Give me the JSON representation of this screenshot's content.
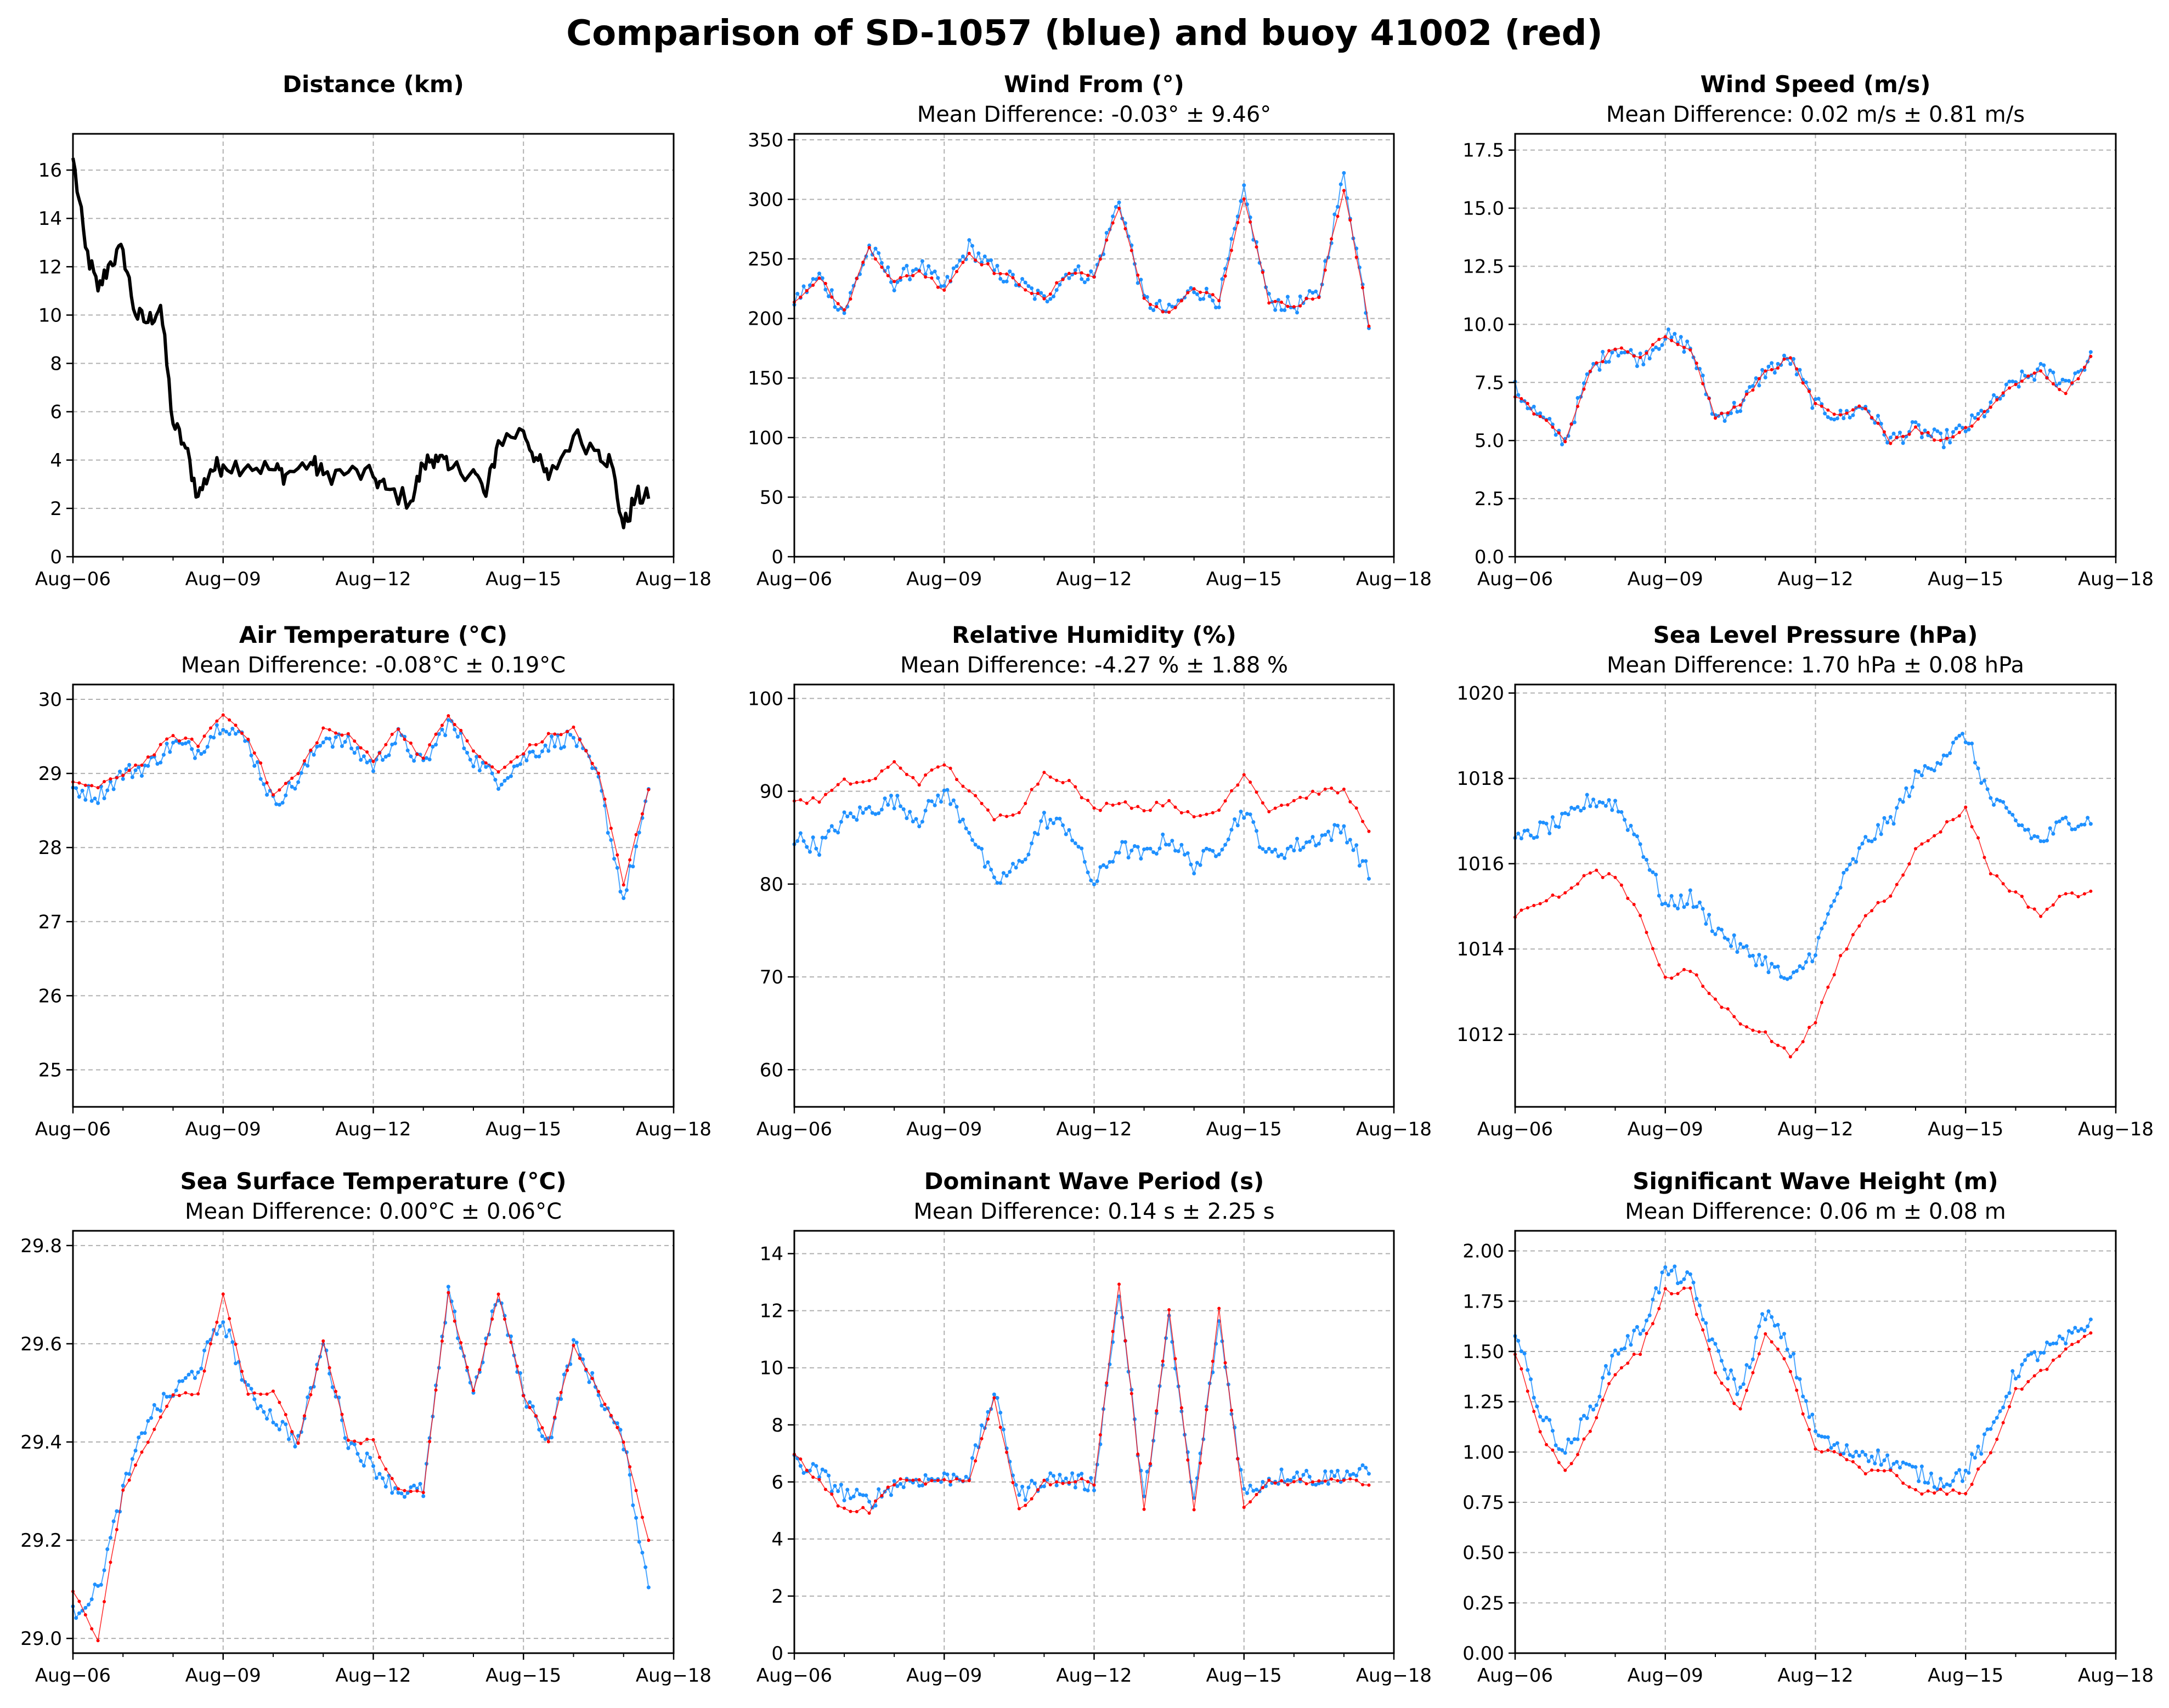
{
  "title": "Comparison of SD-1057 (blue) and buoy 41002 (red)",
  "colors": {
    "saildrone": "#1e90ff",
    "buoy": "#ff0000",
    "distance": "#000000",
    "grid": "#b0b0b0"
  },
  "x_ticks": [
    "Aug−06",
    "Aug−09",
    "Aug−12",
    "Aug−15",
    "Aug−18"
  ],
  "chart_data": [
    {
      "type": "line",
      "title": "Distance (km)",
      "subtitle": "",
      "ylim": [
        0,
        17.5
      ],
      "yticks": [
        "0",
        "2",
        "4",
        "6",
        "8",
        "10",
        "12",
        "14",
        "16"
      ],
      "ytick_values": [
        0,
        2,
        4,
        6,
        8,
        10,
        12,
        14,
        16
      ],
      "x": [
        "08-06",
        "08-06 06:00",
        "08-06 12:00",
        "08-06 18:00",
        "08-07",
        "08-07 06:00",
        "08-07 12:00",
        "08-07 18:00",
        "08-08",
        "08-08 06:00",
        "08-08 12:00",
        "08-08 18:00",
        "08-09",
        "08-09 12:00",
        "08-10",
        "08-10 06:00",
        "08-10 18:00",
        "08-11",
        "08-11 12:00",
        "08-12",
        "08-12 06:00",
        "08-12 18:00",
        "08-13",
        "08-13 06:00",
        "08-13 12:00",
        "08-14",
        "08-14 06:00",
        "08-14 12:00",
        "08-15",
        "08-15 06:00",
        "08-15 12:00",
        "08-16",
        "08-16 12:00",
        "08-16 18:00",
        "08-17",
        "08-17 06:00",
        "08-17 12:00"
      ],
      "series": [
        {
          "values": [
            16.5,
            12.8,
            11.0,
            12.2,
            12.7,
            10.0,
            9.7,
            10.4,
            5.5,
            4.5,
            2.5,
            3.6,
            3.8,
            3.8,
            3.6,
            3.4,
            3.9,
            3.4,
            3.5,
            3.3,
            2.8,
            2.3,
            3.8,
            4.2,
            3.6,
            3.6,
            2.5,
            4.8,
            5.2,
            4.1,
            3.2,
            5.0,
            4.4,
            3.9,
            1.2,
            2.5,
            2.4
          ]
        }
      ]
    },
    {
      "type": "scatter",
      "title": "Wind From (°)",
      "subtitle": "Mean Difference: -0.03° ± 9.46°",
      "ylim": [
        0,
        355
      ],
      "yticks": [
        "0",
        "50",
        "100",
        "150",
        "200",
        "250",
        "300",
        "350"
      ],
      "ytick_values": [
        0,
        50,
        100,
        150,
        200,
        250,
        300,
        350
      ],
      "x": [
        "08-06",
        "08-06 12:00",
        "08-07",
        "08-07 12:00",
        "08-08",
        "08-08 12:00",
        "08-09",
        "08-09 12:00",
        "08-10",
        "08-10 12:00",
        "08-11",
        "08-11 12:00",
        "08-12",
        "08-12 12:00",
        "08-13",
        "08-13 12:00",
        "08-14",
        "08-14 12:00",
        "08-15",
        "08-15 12:00",
        "08-16",
        "08-16 12:00",
        "08-17",
        "08-17 12:00"
      ],
      "series": [
        {
          "name": "SD-1057",
          "values": [
            215,
            235,
            205,
            260,
            230,
            245,
            225,
            260,
            240,
            230,
            215,
            240,
            235,
            300,
            215,
            205,
            225,
            215,
            305,
            215,
            210,
            220,
            320,
            195
          ]
        },
        {
          "name": "41002",
          "values": [
            215,
            235,
            205,
            260,
            230,
            240,
            225,
            255,
            240,
            230,
            215,
            240,
            235,
            295,
            215,
            205,
            225,
            215,
            300,
            215,
            210,
            220,
            310,
            195
          ]
        }
      ]
    },
    {
      "type": "scatter",
      "title": "Wind Speed (m/s)",
      "subtitle": "Mean Difference: 0.02 m/s ± 0.81 m/s",
      "ylim": [
        0,
        18.2
      ],
      "yticks": [
        "0.0",
        "2.5",
        "5.0",
        "7.5",
        "10.0",
        "12.5",
        "15.0",
        "17.5"
      ],
      "ytick_values": [
        0,
        2.5,
        5,
        7.5,
        10,
        12.5,
        15,
        17.5
      ],
      "x": [
        "08-06",
        "08-06 12:00",
        "08-07",
        "08-07 12:00",
        "08-08",
        "08-08 12:00",
        "08-09",
        "08-09 12:00",
        "08-10",
        "08-10 12:00",
        "08-11",
        "08-11 12:00",
        "08-12",
        "08-12 12:00",
        "08-13",
        "08-13 12:00",
        "08-14",
        "08-14 12:00",
        "08-15",
        "08-15 12:00",
        "08-16",
        "08-16 12:00",
        "08-17",
        "08-17 12:00"
      ],
      "series": [
        {
          "name": "SD-1057",
          "values": [
            7.2,
            6.0,
            5.0,
            8.0,
            9.0,
            8.5,
            9.5,
            9.0,
            6.0,
            6.5,
            8.0,
            8.5,
            6.5,
            6.0,
            6.5,
            5.0,
            5.5,
            5.0,
            5.5,
            6.5,
            7.5,
            8.0,
            7.5,
            8.5
          ]
        },
        {
          "name": "41002",
          "values": [
            7.0,
            6.0,
            5.0,
            8.0,
            9.0,
            8.5,
            9.5,
            9.0,
            6.0,
            6.5,
            8.0,
            8.5,
            6.5,
            6.0,
            6.5,
            5.0,
            5.5,
            5.0,
            5.5,
            6.5,
            7.5,
            8.0,
            7.0,
            8.5
          ]
        }
      ]
    },
    {
      "type": "scatter",
      "title": "Air Temperature (°C)",
      "subtitle": "Mean Difference: -0.08°C ± 0.19°C",
      "ylim": [
        24.5,
        30.2
      ],
      "yticks": [
        "25",
        "26",
        "27",
        "28",
        "29",
        "30"
      ],
      "ytick_values": [
        25,
        26,
        27,
        28,
        29,
        30
      ],
      "x": [
        "08-06",
        "08-06 12:00",
        "08-07",
        "08-07 12:00",
        "08-08",
        "08-08 12:00",
        "08-09",
        "08-09 12:00",
        "08-10",
        "08-10 12:00",
        "08-11",
        "08-11 12:00",
        "08-12",
        "08-12 12:00",
        "08-13",
        "08-13 12:00",
        "08-14",
        "08-14 12:00",
        "08-15",
        "08-15 12:00",
        "08-16",
        "08-16 12:00",
        "08-17",
        "08-17 12:00"
      ],
      "series": [
        {
          "name": "SD-1057",
          "values": [
            28.8,
            28.7,
            29.0,
            29.1,
            29.4,
            29.3,
            29.7,
            29.4,
            28.6,
            28.9,
            29.5,
            29.4,
            29.1,
            29.5,
            29.1,
            29.7,
            29.2,
            28.9,
            29.2,
            29.4,
            29.5,
            28.9,
            27.3,
            28.7
          ]
        },
        {
          "name": "41002",
          "values": [
            28.9,
            28.8,
            29.0,
            29.2,
            29.5,
            29.4,
            29.8,
            29.5,
            28.7,
            29.0,
            29.6,
            29.5,
            29.2,
            29.6,
            29.2,
            29.8,
            29.3,
            29.0,
            29.3,
            29.5,
            29.6,
            29.0,
            27.5,
            28.8
          ]
        }
      ]
    },
    {
      "type": "scatter",
      "title": "Relative Humidity (%)",
      "subtitle": "Mean Difference: -4.27 % ± 1.88 %",
      "ylim": [
        56,
        101.5
      ],
      "yticks": [
        "60",
        "70",
        "80",
        "90",
        "100"
      ],
      "ytick_values": [
        60,
        70,
        80,
        90,
        100
      ],
      "x": [
        "08-06",
        "08-06 12:00",
        "08-07",
        "08-07 12:00",
        "08-08",
        "08-08 12:00",
        "08-09",
        "08-09 12:00",
        "08-10",
        "08-10 12:00",
        "08-11",
        "08-11 12:00",
        "08-12",
        "08-12 12:00",
        "08-13",
        "08-13 12:00",
        "08-14",
        "08-14 12:00",
        "08-15",
        "08-15 12:00",
        "08-16",
        "08-16 12:00",
        "08-17",
        "08-17 12:00"
      ],
      "series": [
        {
          "name": "SD-1057",
          "values": [
            85,
            84,
            87,
            88,
            89,
            87,
            90,
            86,
            80,
            82,
            87,
            86,
            80,
            84,
            83,
            85,
            82,
            84,
            88,
            83,
            84,
            85,
            86,
            81
          ]
        },
        {
          "name": "41002",
          "values": [
            89,
            89,
            91,
            91,
            93,
            91,
            93,
            90,
            87,
            88,
            92,
            91,
            88,
            89,
            88,
            89,
            87,
            88,
            92,
            88,
            89,
            90,
            90,
            86
          ]
        }
      ]
    },
    {
      "type": "scatter",
      "title": "Sea Level Pressure (hPa)",
      "subtitle": "Mean Difference: 1.70 hPa ± 0.08 hPa",
      "ylim": [
        1010.3,
        1020.2
      ],
      "yticks": [
        "1012",
        "1014",
        "1016",
        "1018",
        "1020"
      ],
      "ytick_values": [
        1012,
        1014,
        1016,
        1018,
        1020
      ],
      "x": [
        "08-06",
        "08-06 12:00",
        "08-07",
        "08-07 12:00",
        "08-08",
        "08-08 12:00",
        "08-09",
        "08-09 12:00",
        "08-10",
        "08-10 12:00",
        "08-11",
        "08-11 12:00",
        "08-12",
        "08-12 12:00",
        "08-13",
        "08-13 12:00",
        "08-14",
        "08-14 12:00",
        "08-15",
        "08-15 12:00",
        "08-16",
        "08-16 12:00",
        "08-17",
        "08-17 12:00"
      ],
      "series": [
        {
          "name": "SD-1057",
          "values": [
            1016.5,
            1016.8,
            1017.0,
            1017.5,
            1017.4,
            1016.5,
            1015.0,
            1015.2,
            1014.5,
            1014.0,
            1013.7,
            1013.2,
            1014.0,
            1015.5,
            1016.5,
            1017.0,
            1018.0,
            1018.5,
            1019.0,
            1017.5,
            1017.0,
            1016.5,
            1017.0,
            1017.0
          ]
        },
        {
          "name": "41002",
          "values": [
            1014.8,
            1015.1,
            1015.3,
            1015.8,
            1015.7,
            1014.8,
            1013.3,
            1013.5,
            1012.8,
            1012.3,
            1012.0,
            1011.5,
            1012.3,
            1013.8,
            1014.8,
            1015.3,
            1016.3,
            1016.8,
            1017.3,
            1015.8,
            1015.3,
            1014.8,
            1015.3,
            1015.3
          ]
        }
      ]
    },
    {
      "type": "scatter",
      "title": "Sea Surface Temperature (°C)",
      "subtitle": "Mean Difference: 0.00°C ± 0.06°C",
      "ylim": [
        28.97,
        29.83
      ],
      "yticks": [
        "29.0",
        "29.2",
        "29.4",
        "29.6",
        "29.8"
      ],
      "ytick_values": [
        29,
        29.2,
        29.4,
        29.6,
        29.8
      ],
      "x": [
        "08-06",
        "08-06 12:00",
        "08-07",
        "08-07 12:00",
        "08-08",
        "08-08 12:00",
        "08-09",
        "08-09 12:00",
        "08-10",
        "08-10 12:00",
        "08-11",
        "08-11 12:00",
        "08-12",
        "08-12 12:00",
        "08-13",
        "08-13 12:00",
        "08-14",
        "08-14 12:00",
        "08-15",
        "08-15 12:00",
        "08-16",
        "08-16 12:00",
        "08-17",
        "08-17 12:00"
      ],
      "series": [
        {
          "name": "SD-1057",
          "values": [
            29.05,
            29.1,
            29.3,
            29.45,
            29.5,
            29.55,
            29.65,
            29.5,
            29.45,
            29.4,
            29.6,
            29.4,
            29.35,
            29.3,
            29.3,
            29.7,
            29.5,
            29.7,
            29.5,
            29.4,
            29.6,
            29.5,
            29.4,
            29.1
          ]
        },
        {
          "name": "41002",
          "values": [
            29.1,
            29.0,
            29.3,
            29.4,
            29.5,
            29.5,
            29.7,
            29.5,
            29.5,
            29.4,
            29.6,
            29.4,
            29.4,
            29.3,
            29.3,
            29.7,
            29.5,
            29.7,
            29.5,
            29.4,
            29.6,
            29.5,
            29.4,
            29.2
          ]
        }
      ]
    },
    {
      "type": "scatter",
      "title": "Dominant Wave Period (s)",
      "subtitle": "Mean Difference: 0.14 s ± 2.25 s",
      "ylim": [
        0,
        14.8
      ],
      "yticks": [
        "0",
        "2",
        "4",
        "6",
        "8",
        "10",
        "12",
        "14"
      ],
      "ytick_values": [
        0,
        2,
        4,
        6,
        8,
        10,
        12,
        14
      ],
      "x": [
        "08-06",
        "08-06 12:00",
        "08-07",
        "08-07 12:00",
        "08-08",
        "08-08 12:00",
        "08-09",
        "08-09 12:00",
        "08-10",
        "08-10 12:00",
        "08-11",
        "08-11 12:00",
        "08-12",
        "08-12 12:00",
        "08-13",
        "08-13 12:00",
        "08-14",
        "08-14 12:00",
        "08-15",
        "08-15 12:00",
        "08-16",
        "08-16 12:00",
        "08-17",
        "08-17 12:00"
      ],
      "series": [
        {
          "name": "SD-1057",
          "values": [
            6.7,
            6.3,
            5.6,
            5.3,
            5.9,
            6.1,
            6.1,
            6.3,
            9.1,
            5.5,
            6.1,
            6.1,
            5.9,
            12.7,
            5.3,
            11.6,
            5.3,
            11.6,
            5.6,
            6.1,
            6.3,
            6.1,
            6.3,
            6.3
          ]
        },
        {
          "name": "41002",
          "values": [
            7,
            6,
            5,
            5,
            6,
            6,
            6,
            6,
            9,
            5,
            6,
            6,
            6,
            13,
            5,
            12,
            5,
            12,
            5,
            6,
            6,
            6,
            6,
            6
          ]
        }
      ]
    },
    {
      "type": "scatter",
      "title": "Significant Wave Height (m)",
      "subtitle": "Mean Difference: 0.06 m ± 0.08 m",
      "ylim": [
        0,
        2.1
      ],
      "yticks": [
        "0.00",
        "0.25",
        "0.50",
        "0.75",
        "1.00",
        "1.25",
        "1.50",
        "1.75",
        "2.00"
      ],
      "ytick_values": [
        0,
        0.25,
        0.5,
        0.75,
        1,
        1.25,
        1.5,
        1.75,
        2
      ],
      "x": [
        "08-06",
        "08-06 12:00",
        "08-07",
        "08-07 12:00",
        "08-08",
        "08-08 12:00",
        "08-09",
        "08-09 12:00",
        "08-10",
        "08-10 12:00",
        "08-11",
        "08-11 12:00",
        "08-12",
        "08-12 12:00",
        "08-13",
        "08-13 12:00",
        "08-14",
        "08-14 12:00",
        "08-15",
        "08-15 12:00",
        "08-16",
        "08-16 12:00",
        "08-17",
        "08-17 12:00"
      ],
      "series": [
        {
          "name": "SD-1057",
          "values": [
            1.6,
            1.2,
            1.0,
            1.2,
            1.5,
            1.6,
            1.9,
            1.85,
            1.5,
            1.3,
            1.7,
            1.5,
            1.1,
            1.0,
            1.0,
            0.95,
            0.9,
            0.85,
            0.9,
            1.1,
            1.4,
            1.5,
            1.55,
            1.65
          ]
        },
        {
          "name": "41002",
          "values": [
            1.5,
            1.1,
            0.9,
            1.1,
            1.4,
            1.5,
            1.8,
            1.8,
            1.4,
            1.2,
            1.6,
            1.4,
            1.0,
            1.0,
            0.9,
            0.9,
            0.8,
            0.8,
            0.8,
            1.0,
            1.3,
            1.4,
            1.5,
            1.6
          ]
        }
      ]
    }
  ]
}
